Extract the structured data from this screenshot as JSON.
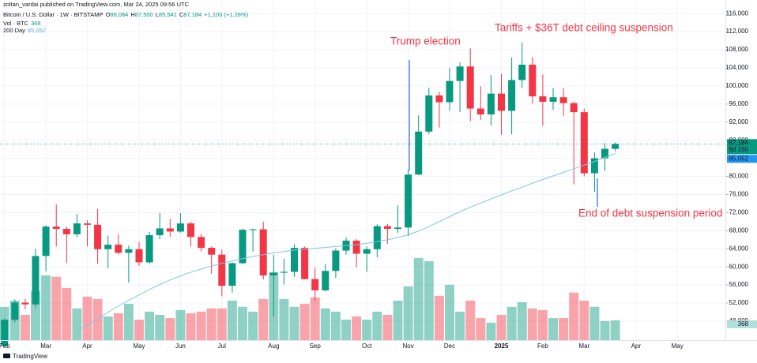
{
  "chart_data": {
    "type": "candlestick",
    "legend": {
      "publisher": "zoltan_vardai published on TradingView.com, Mar 24, 2025 09:56 UTC",
      "symbol": "Bitcoin / U.S. Dollar · 1W · BITSTAMP",
      "ohlc": [
        {
          "key": "O",
          "value": "86,084"
        },
        {
          "key": "H",
          "value": "87,500"
        },
        {
          "key": "L",
          "value": "85,541"
        },
        {
          "key": "C",
          "value": "87,184"
        }
      ],
      "change": "+1,100 (+1.28%)",
      "volume_label": "Vol · BTC",
      "volume_value": "368",
      "ma_label": "200 Day",
      "ma_value": "85,052"
    },
    "annotations": [
      "Trump election",
      "Tariffs + $36T debt ceiling suspension",
      "End of debt suspension period"
    ],
    "price_tags": {
      "last": "87,184",
      "countdown": "6d 15h",
      "ma": "85,052",
      "volume": "368"
    },
    "brand": "TradingView",
    "categories": [
      "Feb",
      null,
      null,
      null,
      "Mar",
      null,
      null,
      null,
      "Apr",
      null,
      null,
      null,
      null,
      "May",
      null,
      null,
      null,
      "Jun",
      null,
      null,
      null,
      "Jul",
      null,
      null,
      null,
      null,
      "Aug",
      null,
      null,
      null,
      "Sep",
      null,
      null,
      null,
      null,
      "Oct",
      null,
      null,
      null,
      "Nov",
      null,
      null,
      null,
      "Dec",
      null,
      null,
      null,
      null,
      "2025",
      null,
      null,
      null,
      "Feb",
      null,
      null,
      null,
      "Mar",
      null,
      null,
      null,
      null,
      "Apr",
      null,
      null,
      null,
      "May"
    ],
    "open": [
      42600,
      48300,
      52100,
      51700,
      62400,
      68900,
      68400,
      67200,
      69600,
      69300,
      63900,
      64900,
      63100,
      63900,
      61000,
      67000,
      68500,
      67800,
      69600,
      66600,
      64200,
      62700,
      55800,
      60800,
      68200,
      68300,
      58100,
      58700,
      58900,
      64200,
      57300,
      54800,
      59100,
      63600,
      65800,
      62900,
      63900,
      69000,
      68400,
      68700,
      80400,
      89900,
      97900,
      96400,
      101100,
      104300,
      95000,
      93700,
      98300,
      94500,
      101300,
      104700,
      97700,
      96500,
      97500,
      96200,
      94200,
      80700,
      84000,
      86084,
      null,
      null,
      null,
      null,
      null,
      null
    ],
    "high": [
      48600,
      52800,
      52900,
      64000,
      69200,
      73800,
      68900,
      71700,
      70300,
      72800,
      66900,
      67200,
      64700,
      65500,
      67700,
      71900,
      70600,
      71900,
      70000,
      67300,
      64500,
      63800,
      61000,
      68400,
      68400,
      70000,
      62700,
      61800,
      65000,
      64500,
      59800,
      60600,
      64100,
      66500,
      66100,
      64500,
      69400,
      69500,
      73600,
      81500,
      93500,
      99600,
      98700,
      104000,
      105200,
      108300,
      99900,
      102400,
      102700,
      106300,
      109600,
      106400,
      102500,
      99500,
      99500,
      96500,
      95000,
      85300,
      87400,
      87500,
      null,
      null,
      null,
      null,
      null,
      null
    ],
    "low": [
      42300,
      47700,
      50600,
      50900,
      59000,
      64500,
      60800,
      66500,
      64500,
      60700,
      59700,
      62800,
      56500,
      60200,
      60600,
      66100,
      66700,
      67600,
      64500,
      63400,
      58500,
      53500,
      54300,
      60600,
      63400,
      57200,
      49000,
      56100,
      57800,
      57200,
      52500,
      54600,
      57500,
      62700,
      59900,
      58900,
      62100,
      65100,
      67500,
      66800,
      80300,
      89300,
      90800,
      94500,
      94200,
      92200,
      92500,
      91300,
      89200,
      89300,
      99500,
      96100,
      91200,
      94700,
      93400,
      78200,
      80000,
      76600,
      81200,
      85541,
      null,
      null,
      null,
      null,
      null,
      null
    ],
    "close": [
      48300,
      52100,
      51700,
      62400,
      68900,
      68400,
      67200,
      69600,
      69300,
      63900,
      64900,
      63100,
      63900,
      61000,
      67000,
      68500,
      67800,
      69600,
      66600,
      64200,
      62700,
      55800,
      60800,
      68200,
      68300,
      58100,
      58700,
      58900,
      64200,
      57300,
      54800,
      59100,
      63600,
      65800,
      62900,
      63900,
      69000,
      68400,
      68700,
      80400,
      89900,
      97900,
      96400,
      101100,
      104300,
      95000,
      93700,
      98300,
      94500,
      101300,
      104700,
      97700,
      96500,
      97500,
      96200,
      94200,
      80700,
      84000,
      86100,
      87184,
      null,
      null,
      null,
      null,
      null,
      null
    ],
    "volume": [
      620,
      735,
      470,
      910,
      1205,
      1180,
      970,
      590,
      810,
      765,
      440,
      500,
      675,
      380,
      530,
      470,
      410,
      560,
      500,
      530,
      590,
      590,
      735,
      620,
      530,
      765,
      1265,
      765,
      620,
      675,
      795,
      590,
      530,
      380,
      440,
      380,
      530,
      470,
      735,
      1000,
      1530,
      1470,
      825,
      1030,
      530,
      735,
      410,
      325,
      470,
      620,
      705,
      590,
      560,
      410,
      410,
      885,
      735,
      620,
      355,
      368,
      null,
      null,
      null,
      null,
      null,
      null
    ],
    "ma": {
      "name": "200 Day",
      "color": "#7ec8e3",
      "values": [
        null,
        null,
        null,
        null,
        null,
        null,
        null,
        46000,
        47000,
        48500,
        50000,
        51300,
        52600,
        53800,
        55000,
        56100,
        57100,
        58000,
        58800,
        59500,
        60200,
        60800,
        61300,
        61800,
        62300,
        62700,
        63100,
        63400,
        63700,
        63900,
        64100,
        64300,
        64500,
        64700,
        64900,
        65200,
        65600,
        66000,
        66500,
        67100,
        67900,
        68900,
        70000,
        71100,
        72200,
        73200,
        74100,
        75000,
        75900,
        76800,
        77600,
        78500,
        79300,
        80100,
        80900,
        81700,
        82500,
        83300,
        84200,
        85052,
        null,
        null,
        null,
        null,
        null,
        null
      ]
    },
    "up_color": "#089981",
    "down_color": "#f23645",
    "ylim": [
      43800,
      119000
    ],
    "volume_ylim": [
      0,
      6330
    ],
    "yticks": [
      {
        "value": 48000,
        "label": "48,000"
      },
      {
        "value": 52000,
        "label": "52,000"
      },
      {
        "value": 56000,
        "label": "56,000"
      },
      {
        "value": 60000,
        "label": "60,000"
      },
      {
        "value": 64000,
        "label": "64,000"
      },
      {
        "value": 68000,
        "label": "68,000"
      },
      {
        "value": 72000,
        "label": "72,000"
      },
      {
        "value": 76000,
        "label": "76,000"
      },
      {
        "value": 80000,
        "label": "80,000"
      },
      {
        "value": 84000,
        "label": "84,000"
      },
      {
        "value": 88000,
        "label": "88,000"
      },
      {
        "value": 92000,
        "label": "92,000"
      },
      {
        "value": 96000,
        "label": "96,000"
      },
      {
        "value": 100000,
        "label": "100,000"
      },
      {
        "value": 104000,
        "label": "104,000"
      },
      {
        "value": 108000,
        "label": "108,000"
      },
      {
        "value": 112000,
        "label": "112,000"
      },
      {
        "value": 116000,
        "label": "116,000"
      }
    ],
    "grid": true
  }
}
